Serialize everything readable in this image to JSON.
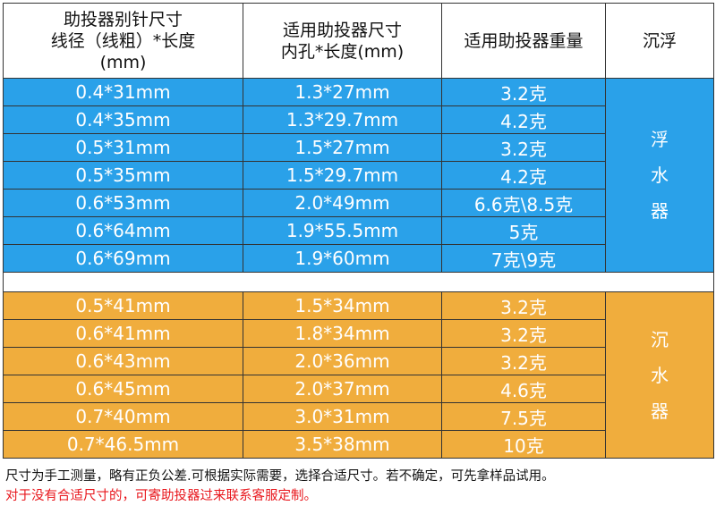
{
  "headers": {
    "col1": [
      "助投器别针尺寸",
      "线径（线粗）*长度",
      "(mm)"
    ],
    "col2": [
      "适用助投器尺寸",
      "内孔*长度(mm)"
    ],
    "col3": "适用助投器重量",
    "col4": "沉浮"
  },
  "colors": {
    "float_group": "#2aa1e9",
    "sink_group": "#f0ad3d",
    "warning_text": "#e8151b"
  },
  "float_group": {
    "label": [
      "浮",
      "水",
      "器"
    ],
    "rows": [
      {
        "pin": "0.4*31mm",
        "size": "1.3*27mm",
        "weight": "3.2克"
      },
      {
        "pin": "0.4*35mm",
        "size": "1.3*29.7mm",
        "weight": "4.2克"
      },
      {
        "pin": "0.5*31mm",
        "size": "1.5*27mm",
        "weight": "3.2克"
      },
      {
        "pin": "0.5*35mm",
        "size": "1.5*29.7mm",
        "weight": "4.2克"
      },
      {
        "pin": "0.6*53mm",
        "size": "2.0*49mm",
        "weight": "6.6克\\8.5克"
      },
      {
        "pin": "0.6*64mm",
        "size": "1.9*55.5mm",
        "weight": "5克"
      },
      {
        "pin": "0.6*69mm",
        "size": "1.9*60mm",
        "weight": "7克\\9克"
      }
    ]
  },
  "sink_group": {
    "label": [
      "沉",
      "水",
      "器"
    ],
    "rows": [
      {
        "pin": "0.5*41mm",
        "size": "1.5*34mm",
        "weight": "3.2克"
      },
      {
        "pin": "0.6*41mm",
        "size": "1.8*34mm",
        "weight": "3.2克"
      },
      {
        "pin": "0.6*43mm",
        "size": "2.0*36mm",
        "weight": "3.2克"
      },
      {
        "pin": "0.6*45mm",
        "size": "2.0*37mm",
        "weight": "4.6克"
      },
      {
        "pin": "0.7*40mm",
        "size": "3.0*31mm",
        "weight": "7.5克"
      },
      {
        "pin": "0.7*46.5mm",
        "size": "3.5*38mm",
        "weight": "10克"
      }
    ]
  },
  "notes": {
    "line1": "尺寸为手工测量，略有正负公差.可根据实际需要，选择合适尺寸。若不确定，可先拿样品试用。",
    "line2": "对于没有合适尺寸的，可寄助投器过来联系客服定制。"
  }
}
